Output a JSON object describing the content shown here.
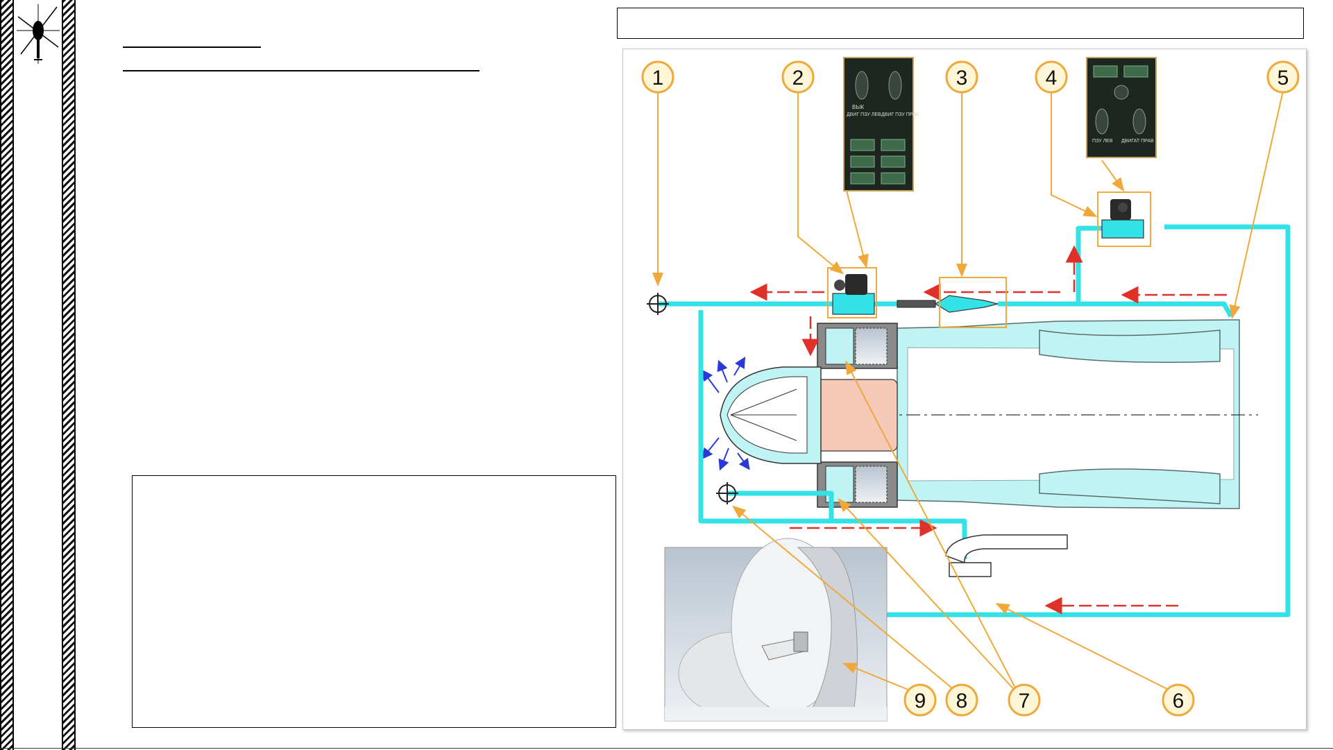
{
  "colors": {
    "pipe": "#33e2e6",
    "leader": "#f0a83a",
    "flow_arrow": "#e0302a",
    "callout_fill": "#fff6d8",
    "panel_bg": "#1e2620",
    "engine_fill": "#bff3f4",
    "combustor": "#f5c8b8"
  },
  "icons": {
    "logo": "helicopter-icon",
    "connection_points": "crosshair-icon"
  },
  "diagram": {
    "callouts": [
      "1",
      "2",
      "3",
      "4",
      "5",
      "6",
      "7",
      "8",
      "9"
    ],
    "panel_left": {
      "tumbler_labels": [
        "ВЫК",
        "ДВИГ ПЗУ ЛЕВ",
        "ДВИГ ПЗУ ПРАВ"
      ]
    },
    "panel_right": {
      "tumbler_labels": [
        "ПЗУ ЛЕВ",
        "ДВИГАТ ПРАВ"
      ]
    }
  }
}
